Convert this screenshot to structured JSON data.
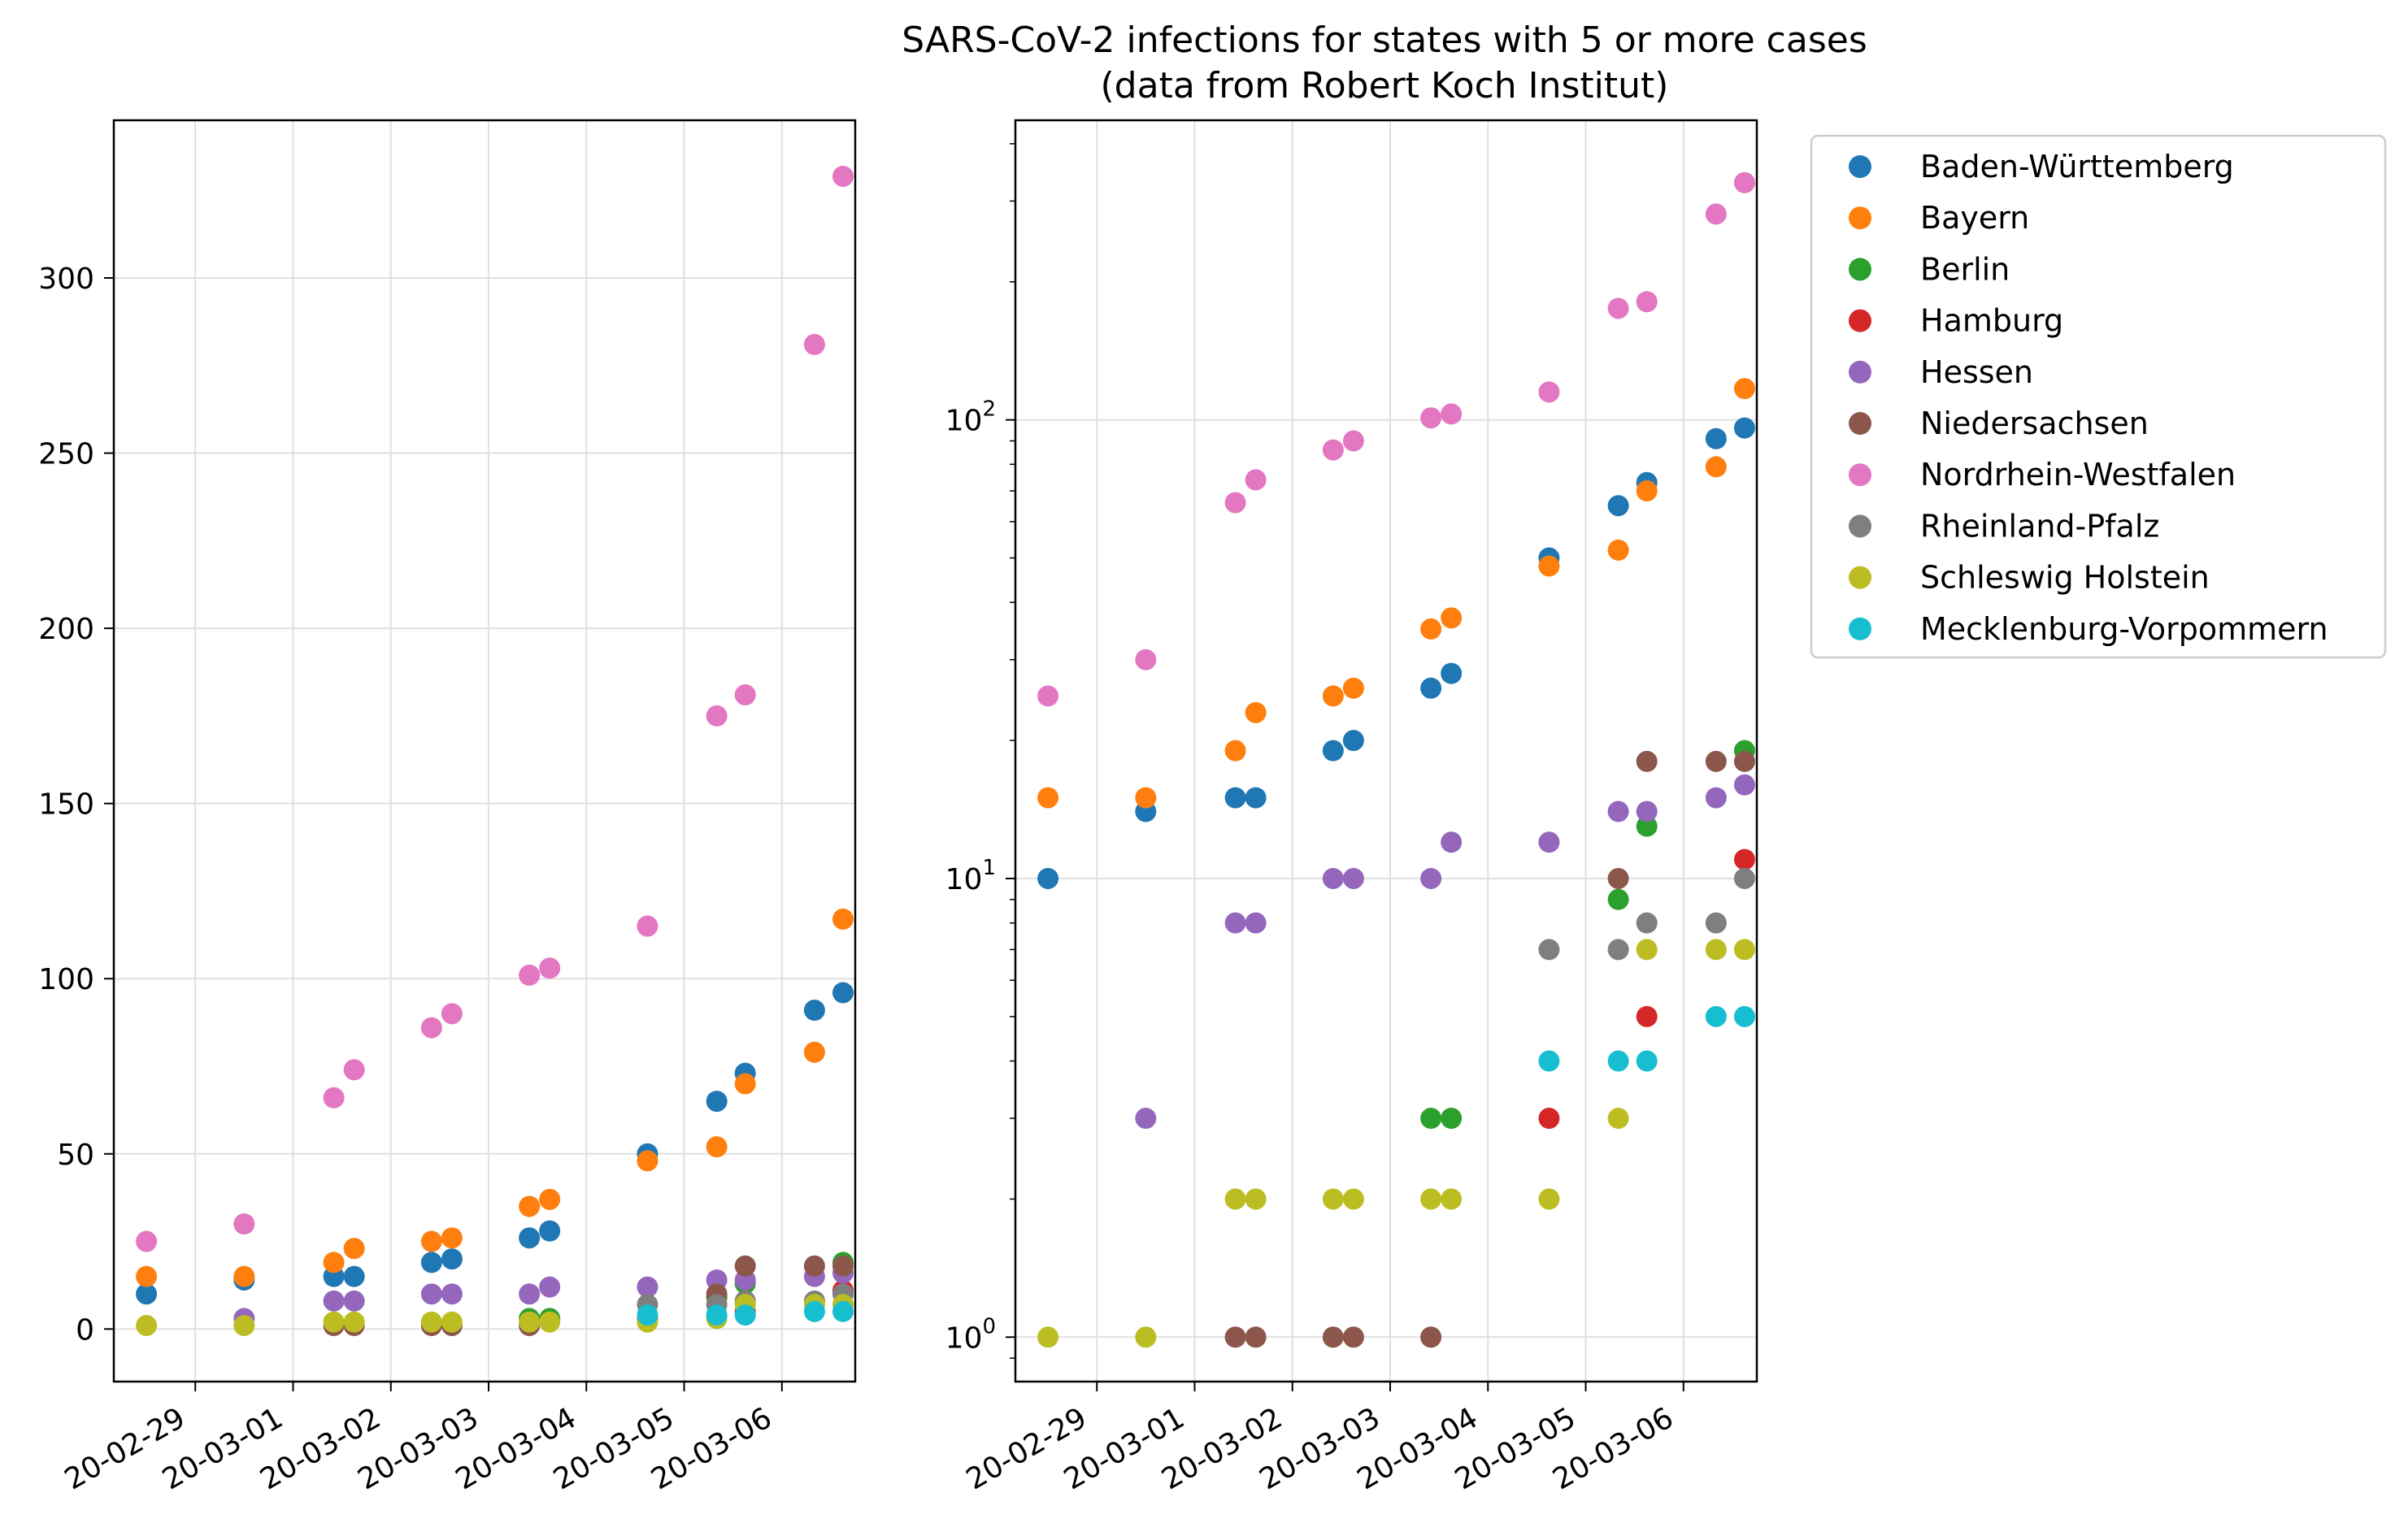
{
  "chart_data": {
    "type": "scatter",
    "title": "SARS-CoV-2 infections for states with 5 or more cases",
    "subtitle": "(data from Robert Koch Institut)",
    "legend_position": "right",
    "grid": true,
    "x_ticks": [
      "20-02-29",
      "20-03-01",
      "20-03-02",
      "20-03-03",
      "20-03-04",
      "20-03-05",
      "20-03-06"
    ],
    "x_range": [
      "2020-02-28 04:00",
      "2020-03-06 18:00"
    ],
    "panels": [
      {
        "name": "linear",
        "yscale": "linear",
        "ylim": [
          -15,
          345
        ],
        "yticks": [
          0,
          50,
          100,
          150,
          200,
          250,
          300
        ]
      },
      {
        "name": "log",
        "yscale": "log",
        "ylim": [
          0.8,
          450
        ],
        "yticks": [
          1,
          10,
          100
        ],
        "ytick_labels": [
          "10",
          "10",
          "10"
        ],
        "ytick_exponents": [
          "0",
          "1",
          "2"
        ]
      }
    ],
    "series": [
      {
        "name": "Baden-Württemberg",
        "color": "#1f77b4",
        "points": [
          [
            "2020-02-28 12:00",
            10
          ],
          [
            "2020-02-29 12:00",
            14
          ],
          [
            "2020-03-01 10:00",
            15
          ],
          [
            "2020-03-01 15:00",
            15
          ],
          [
            "2020-03-02 10:00",
            19
          ],
          [
            "2020-03-02 15:00",
            20
          ],
          [
            "2020-03-03 10:00",
            26
          ],
          [
            "2020-03-03 15:00",
            28
          ],
          [
            "2020-03-04 15:00",
            50
          ],
          [
            "2020-03-05 08:00",
            65
          ],
          [
            "2020-03-05 15:00",
            73
          ],
          [
            "2020-03-06 08:00",
            91
          ],
          [
            "2020-03-06 15:00",
            96
          ]
        ]
      },
      {
        "name": "Bayern",
        "color": "#ff7f0e",
        "points": [
          [
            "2020-02-28 12:00",
            15
          ],
          [
            "2020-02-29 12:00",
            15
          ],
          [
            "2020-03-01 10:00",
            19
          ],
          [
            "2020-03-01 15:00",
            23
          ],
          [
            "2020-03-02 10:00",
            25
          ],
          [
            "2020-03-02 15:00",
            26
          ],
          [
            "2020-03-03 10:00",
            35
          ],
          [
            "2020-03-03 15:00",
            37
          ],
          [
            "2020-03-04 15:00",
            48
          ],
          [
            "2020-03-05 08:00",
            52
          ],
          [
            "2020-03-05 15:00",
            70
          ],
          [
            "2020-03-06 08:00",
            79
          ],
          [
            "2020-03-06 15:00",
            117
          ]
        ]
      },
      {
        "name": "Berlin",
        "color": "#2ca02c",
        "points": [
          [
            "2020-03-03 10:00",
            3
          ],
          [
            "2020-03-03 15:00",
            3
          ],
          [
            "2020-03-05 08:00",
            9
          ],
          [
            "2020-03-05 15:00",
            13
          ],
          [
            "2020-03-06 15:00",
            19
          ]
        ]
      },
      {
        "name": "Hamburg",
        "color": "#d62728",
        "points": [
          [
            "2020-03-04 15:00",
            3
          ],
          [
            "2020-03-05 15:00",
            5
          ],
          [
            "2020-03-06 15:00",
            11
          ]
        ]
      },
      {
        "name": "Hessen",
        "color": "#9467bd",
        "points": [
          [
            "2020-02-29 12:00",
            3
          ],
          [
            "2020-03-01 10:00",
            8
          ],
          [
            "2020-03-01 15:00",
            8
          ],
          [
            "2020-03-02 10:00",
            10
          ],
          [
            "2020-03-02 15:00",
            10
          ],
          [
            "2020-03-03 10:00",
            10
          ],
          [
            "2020-03-03 15:00",
            12
          ],
          [
            "2020-03-04 15:00",
            12
          ],
          [
            "2020-03-05 08:00",
            14
          ],
          [
            "2020-03-05 15:00",
            14
          ],
          [
            "2020-03-06 08:00",
            15
          ],
          [
            "2020-03-06 15:00",
            16
          ]
        ]
      },
      {
        "name": "Niedersachsen",
        "color": "#8c564b",
        "points": [
          [
            "2020-03-01 10:00",
            1
          ],
          [
            "2020-03-01 15:00",
            1
          ],
          [
            "2020-03-02 10:00",
            1
          ],
          [
            "2020-03-02 15:00",
            1
          ],
          [
            "2020-03-03 10:00",
            1
          ],
          [
            "2020-03-05 08:00",
            10
          ],
          [
            "2020-03-05 15:00",
            18
          ],
          [
            "2020-03-06 08:00",
            18
          ],
          [
            "2020-03-06 15:00",
            18
          ]
        ]
      },
      {
        "name": "Nordrhein-Westfalen",
        "color": "#e377c2",
        "points": [
          [
            "2020-02-28 12:00",
            25
          ],
          [
            "2020-02-29 12:00",
            30
          ],
          [
            "2020-03-01 10:00",
            66
          ],
          [
            "2020-03-01 15:00",
            74
          ],
          [
            "2020-03-02 10:00",
            86
          ],
          [
            "2020-03-02 15:00",
            90
          ],
          [
            "2020-03-03 10:00",
            101
          ],
          [
            "2020-03-03 15:00",
            103
          ],
          [
            "2020-03-04 15:00",
            115
          ],
          [
            "2020-03-05 08:00",
            175
          ],
          [
            "2020-03-05 15:00",
            181
          ],
          [
            "2020-03-06 08:00",
            281
          ],
          [
            "2020-03-06 15:00",
            329
          ]
        ]
      },
      {
        "name": "Rheinland-Pfalz",
        "color": "#7f7f7f",
        "points": [
          [
            "2020-03-04 15:00",
            7
          ],
          [
            "2020-03-05 08:00",
            7
          ],
          [
            "2020-03-05 15:00",
            8
          ],
          [
            "2020-03-06 08:00",
            8
          ],
          [
            "2020-03-06 15:00",
            10
          ]
        ]
      },
      {
        "name": "Schleswig Holstein",
        "color": "#bcbd22",
        "points": [
          [
            "2020-02-28 12:00",
            1
          ],
          [
            "2020-02-29 12:00",
            1
          ],
          [
            "2020-03-01 10:00",
            2
          ],
          [
            "2020-03-01 15:00",
            2
          ],
          [
            "2020-03-02 10:00",
            2
          ],
          [
            "2020-03-02 15:00",
            2
          ],
          [
            "2020-03-03 10:00",
            2
          ],
          [
            "2020-03-03 15:00",
            2
          ],
          [
            "2020-03-04 15:00",
            2
          ],
          [
            "2020-03-05 08:00",
            3
          ],
          [
            "2020-03-05 15:00",
            7
          ],
          [
            "2020-03-06 08:00",
            7
          ],
          [
            "2020-03-06 15:00",
            7
          ]
        ]
      },
      {
        "name": "Mecklenburg-Vorpommern",
        "color": "#17becf",
        "points": [
          [
            "2020-03-04 15:00",
            4
          ],
          [
            "2020-03-05 08:00",
            4
          ],
          [
            "2020-03-05 15:00",
            4
          ],
          [
            "2020-03-06 08:00",
            5
          ],
          [
            "2020-03-06 15:00",
            5
          ]
        ]
      }
    ]
  }
}
